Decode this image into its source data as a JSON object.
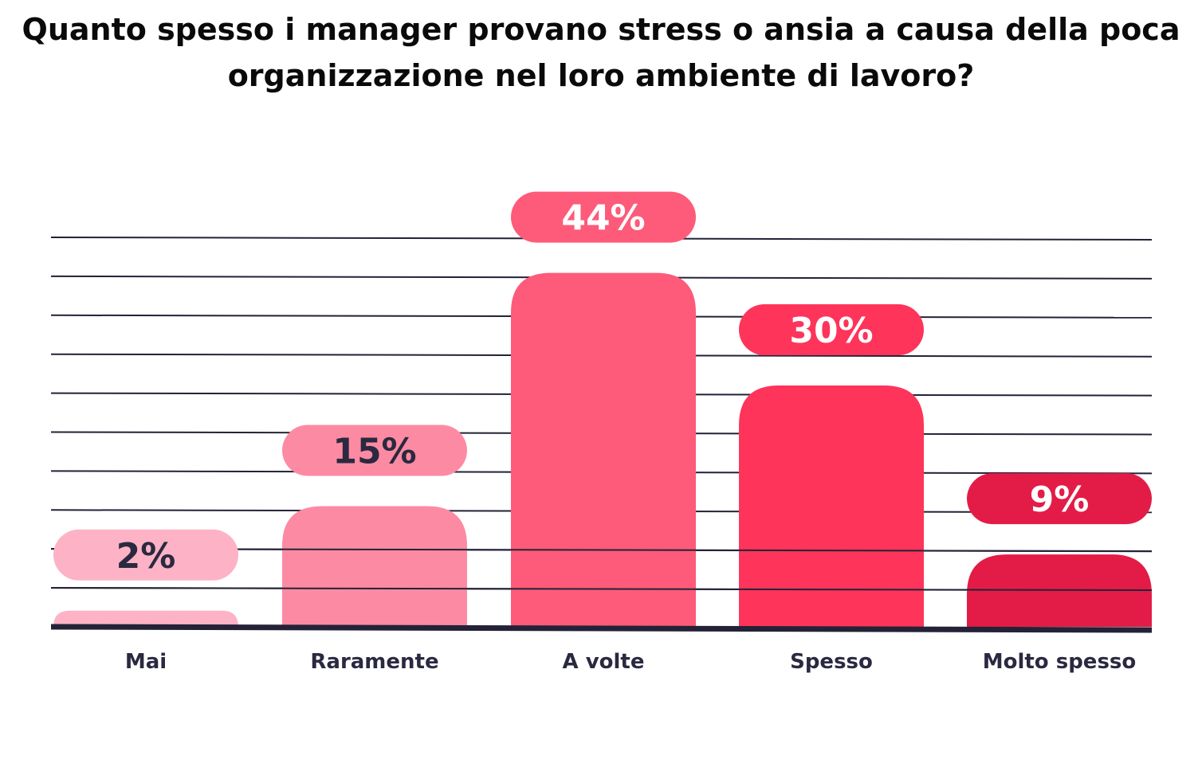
{
  "chart_data": {
    "type": "bar",
    "title": "Quanto spesso i manager provano stress o ansia a causa della poca organizzazione nel loro ambiente di lavoro?",
    "categories": [
      "Mai",
      "Raramente",
      "A volte",
      "Spesso",
      "Molto spesso"
    ],
    "values": [
      2,
      15,
      44,
      30,
      9
    ],
    "value_labels": [
      "2%",
      "15%",
      "44%",
      "30%",
      "9%"
    ],
    "unit": "%",
    "ylim": [
      0,
      50
    ],
    "grid": true,
    "legend": "none",
    "colors": {
      "bars": [
        "#fdb3c5",
        "#fd8aa3",
        "#fd5b79",
        "#fe345a",
        "#e31c47"
      ],
      "label_text": [
        "#2a2940",
        "#2a2940",
        "#ffffff",
        "#ffffff",
        "#ffffff"
      ],
      "gridline": "#232237",
      "baseline": "#232237"
    }
  }
}
